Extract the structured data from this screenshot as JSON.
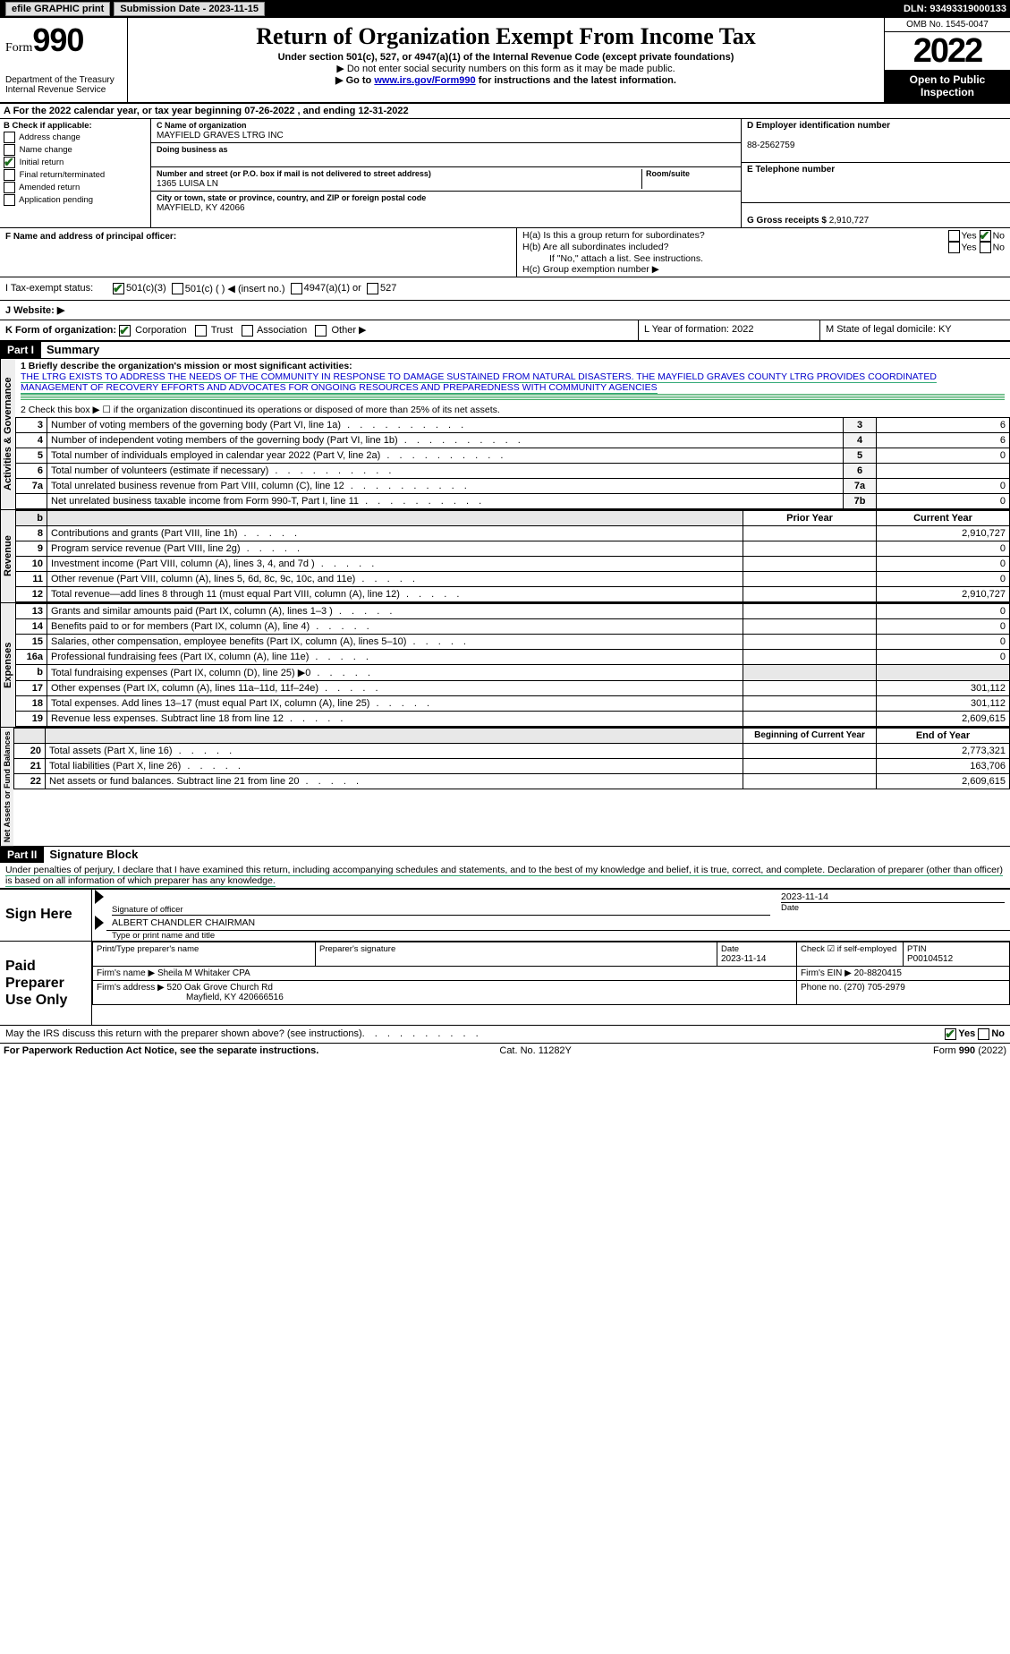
{
  "topbar": {
    "efile": "efile GRAPHIC print",
    "submission_label": "Submission Date - 2023-11-15",
    "dln": "DLN: 93493319000133"
  },
  "header": {
    "form_prefix": "Form",
    "form_number": "990",
    "dept": "Department of the Treasury",
    "irs": "Internal Revenue Service",
    "title": "Return of Organization Exempt From Income Tax",
    "sub": "Under section 501(c), 527, or 4947(a)(1) of the Internal Revenue Code (except private foundations)",
    "note1": "▶ Do not enter social security numbers on this form as it may be made public.",
    "note2_pre": "▶ Go to ",
    "note2_link": "www.irs.gov/Form990",
    "note2_post": " for instructions and the latest information.",
    "omb": "OMB No. 1545-0047",
    "year": "2022",
    "open": "Open to Public Inspection"
  },
  "section_a": "A For the 2022 calendar year, or tax year beginning 07-26-2022   , and ending 12-31-2022",
  "col_b": {
    "header": "B Check if applicable:",
    "items": [
      "Address change",
      "Name change",
      "Initial return",
      "Final return/terminated",
      "Amended return",
      "Application pending"
    ],
    "checked_idx": 2
  },
  "col_c": {
    "name_label": "C Name of organization",
    "name": "MAYFIELD GRAVES LTRG INC",
    "dba_label": "Doing business as",
    "dba": "",
    "addr_label": "Number and street (or P.O. box if mail is not delivered to street address)",
    "addr": "1365 LUISA LN",
    "room_label": "Room/suite",
    "city_label": "City or town, state or province, country, and ZIP or foreign postal code",
    "city": "MAYFIELD, KY  42066"
  },
  "col_de": {
    "d_label": "D Employer identification number",
    "d_val": "88-2562759",
    "e_label": "E Telephone number",
    "e_val": "",
    "g_label": "G Gross receipts $",
    "g_val": "2,910,727"
  },
  "row_f": {
    "f_label": "F  Name and address of principal officer:",
    "f_val": "",
    "ha": "H(a)  Is this a group return for subordinates?",
    "hb": "H(b)  Are all subordinates included?",
    "hb_note": "If \"No,\" attach a list. See instructions.",
    "hc": "H(c)  Group exemption number ▶",
    "yes": "Yes",
    "no": "No"
  },
  "row_i": {
    "label": "I   Tax-exempt status:",
    "o1": "501(c)(3)",
    "o2": "501(c) (  ) ◀ (insert no.)",
    "o3": "4947(a)(1) or",
    "o4": "527"
  },
  "row_j": {
    "label": "J   Website: ▶",
    "val": ""
  },
  "row_k": {
    "label": "K Form of organization:",
    "o1": "Corporation",
    "o2": "Trust",
    "o3": "Association",
    "o4": "Other ▶",
    "l": "L Year of formation: 2022",
    "m": "M State of legal domicile: KY"
  },
  "part1": {
    "tag": "Part I",
    "title": "Summary",
    "l1_label": "1  Briefly describe the organization's mission or most significant activities:",
    "l1_text": "THE LTRG EXISTS TO ADDRESS THE NEEDS OF THE COMMUNITY IN RESPONSE TO DAMAGE SUSTAINED FROM NATURAL DISASTERS. THE MAYFIELD GRAVES COUNTY LTRG PROVIDES COORDINATED MANAGEMENT OF RECOVERY EFFORTS AND ADVOCATES FOR ONGOING RESOURCES AND PREPAREDNESS WITH COMMUNITY AGENCIES",
    "l2": "2    Check this box ▶ ☐  if the organization discontinued its operations or disposed of more than 25% of its net assets.",
    "rows_gov": [
      {
        "n": "3",
        "t": "Number of voting members of the governing body (Part VI, line 1a)",
        "box": "3",
        "v": "6"
      },
      {
        "n": "4",
        "t": "Number of independent voting members of the governing body (Part VI, line 1b)",
        "box": "4",
        "v": "6"
      },
      {
        "n": "5",
        "t": "Total number of individuals employed in calendar year 2022 (Part V, line 2a)",
        "box": "5",
        "v": "0"
      },
      {
        "n": "6",
        "t": "Total number of volunteers (estimate if necessary)",
        "box": "6",
        "v": ""
      },
      {
        "n": "7a",
        "t": "Total unrelated business revenue from Part VIII, column (C), line 12",
        "box": "7a",
        "v": "0"
      },
      {
        "n": "",
        "t": "Net unrelated business taxable income from Form 990-T, Part I, line 11",
        "box": "7b",
        "v": "0"
      }
    ],
    "col_prior": "Prior Year",
    "col_curr": "Current Year",
    "rows_rev": [
      {
        "n": "8",
        "t": "Contributions and grants (Part VIII, line 1h)",
        "p": "",
        "c": "2,910,727"
      },
      {
        "n": "9",
        "t": "Program service revenue (Part VIII, line 2g)",
        "p": "",
        "c": "0"
      },
      {
        "n": "10",
        "t": "Investment income (Part VIII, column (A), lines 3, 4, and 7d )",
        "p": "",
        "c": "0"
      },
      {
        "n": "11",
        "t": "Other revenue (Part VIII, column (A), lines 5, 6d, 8c, 9c, 10c, and 11e)",
        "p": "",
        "c": "0"
      },
      {
        "n": "12",
        "t": "Total revenue—add lines 8 through 11 (must equal Part VIII, column (A), line 12)",
        "p": "",
        "c": "2,910,727"
      }
    ],
    "rows_exp": [
      {
        "n": "13",
        "t": "Grants and similar amounts paid (Part IX, column (A), lines 1–3 )",
        "p": "",
        "c": "0"
      },
      {
        "n": "14",
        "t": "Benefits paid to or for members (Part IX, column (A), line 4)",
        "p": "",
        "c": "0"
      },
      {
        "n": "15",
        "t": "Salaries, other compensation, employee benefits (Part IX, column (A), lines 5–10)",
        "p": "",
        "c": "0"
      },
      {
        "n": "16a",
        "t": "Professional fundraising fees (Part IX, column (A), line 11e)",
        "p": "",
        "c": "0"
      },
      {
        "n": "b",
        "t": "Total fundraising expenses (Part IX, column (D), line 25) ▶0",
        "p": "—",
        "c": "—"
      },
      {
        "n": "17",
        "t": "Other expenses (Part IX, column (A), lines 11a–11d, 11f–24e)",
        "p": "",
        "c": "301,112"
      },
      {
        "n": "18",
        "t": "Total expenses. Add lines 13–17 (must equal Part IX, column (A), line 25)",
        "p": "",
        "c": "301,112"
      },
      {
        "n": "19",
        "t": "Revenue less expenses. Subtract line 18 from line 12",
        "p": "",
        "c": "2,609,615"
      }
    ],
    "col_beg": "Beginning of Current Year",
    "col_end": "End of Year",
    "rows_net": [
      {
        "n": "20",
        "t": "Total assets (Part X, line 16)",
        "p": "",
        "c": "2,773,321"
      },
      {
        "n": "21",
        "t": "Total liabilities (Part X, line 26)",
        "p": "",
        "c": "163,706"
      },
      {
        "n": "22",
        "t": "Net assets or fund balances. Subtract line 21 from line 20",
        "p": "",
        "c": "2,609,615"
      }
    ],
    "vtab_gov": "Activities & Governance",
    "vtab_rev": "Revenue",
    "vtab_exp": "Expenses",
    "vtab_net": "Net Assets or Fund Balances"
  },
  "part2": {
    "tag": "Part II",
    "title": "Signature Block",
    "decl": "Under penalties of perjury, I declare that I have examined this return, including accompanying schedules and statements, and to the best of my knowledge and belief, it is true, correct, and complete. Declaration of preparer (other than officer) is based on all information of which preparer has any knowledge.",
    "sign_here": "Sign Here",
    "sig_officer": "Signature of officer",
    "sig_date": "Date",
    "sig_date_val": "2023-11-14",
    "name_title": "ALBERT CHANDLER  CHAIRMAN",
    "name_title_label": "Type or print name and title",
    "paid": "Paid Preparer Use Only",
    "prep_name_label": "Print/Type preparer's name",
    "prep_name": "",
    "prep_sig_label": "Preparer's signature",
    "prep_date_label": "Date",
    "prep_date": "2023-11-14",
    "prep_self_label": "Check ☑ if self-employed",
    "ptin_label": "PTIN",
    "ptin": "P00104512",
    "firm_name_label": "Firm's name    ▶",
    "firm_name": "Sheila M Whitaker CPA",
    "firm_ein_label": "Firm's EIN ▶",
    "firm_ein": "20-8820415",
    "firm_addr_label": "Firm's address ▶",
    "firm_addr": "520 Oak Grove Church Rd",
    "firm_city": "Mayfield, KY  420666516",
    "firm_phone_label": "Phone no.",
    "firm_phone": "(270) 705-2979",
    "discuss": "May the IRS discuss this return with the preparer shown above? (see instructions)",
    "discuss_yes": "Yes",
    "discuss_no": "No"
  },
  "footer": {
    "left": "For Paperwork Reduction Act Notice, see the separate instructions.",
    "mid": "Cat. No. 11282Y",
    "right": "Form 990 (2022)"
  },
  "colors": {
    "link": "#0000cc",
    "black": "#000000",
    "white": "#ffffff",
    "check": "#1a6b1a"
  }
}
